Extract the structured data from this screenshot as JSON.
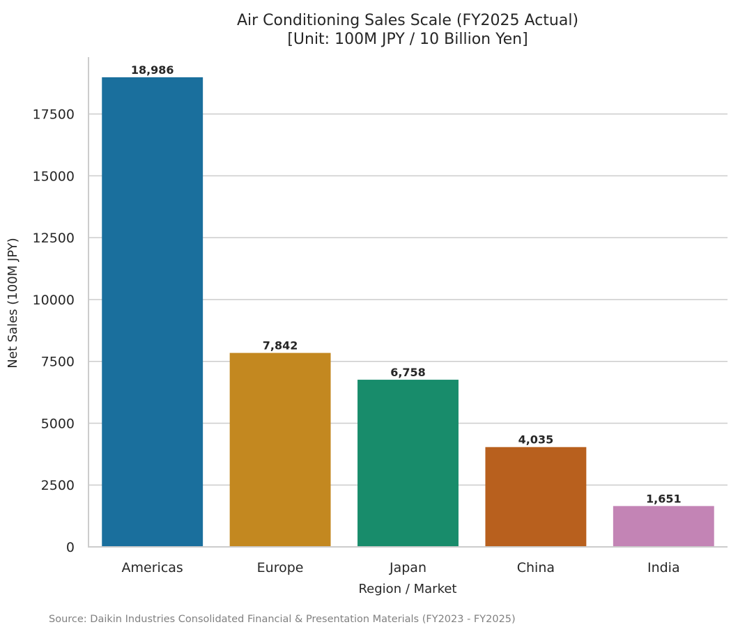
{
  "chart_data": {
    "type": "bar",
    "title": [
      "Air Conditioning Sales Scale (FY2025 Actual)",
      "[Unit: 100M JPY / 10 Billion Yen]"
    ],
    "xlabel": "Region / Market",
    "ylabel": "Net Sales (100M JPY)",
    "categories": [
      "Americas",
      "Europe",
      "Japan",
      "China",
      "India"
    ],
    "values": [
      18986,
      7842,
      6758,
      4035,
      1651
    ],
    "value_labels": [
      "18,986",
      "7,842",
      "6,758",
      "4,035",
      "1,651"
    ],
    "colors": [
      "#1a6f9d",
      "#c38820",
      "#188c6b",
      "#b8601e",
      "#c384b5"
    ],
    "ylim": [
      0,
      19800
    ],
    "yticks": [
      0,
      2500,
      5000,
      7500,
      10000,
      12500,
      15000,
      17500
    ],
    "grid": true,
    "legend": "none"
  },
  "source_note": "Source: Daikin Industries Consolidated Financial & Presentation Materials (FY2023 - FY2025)"
}
